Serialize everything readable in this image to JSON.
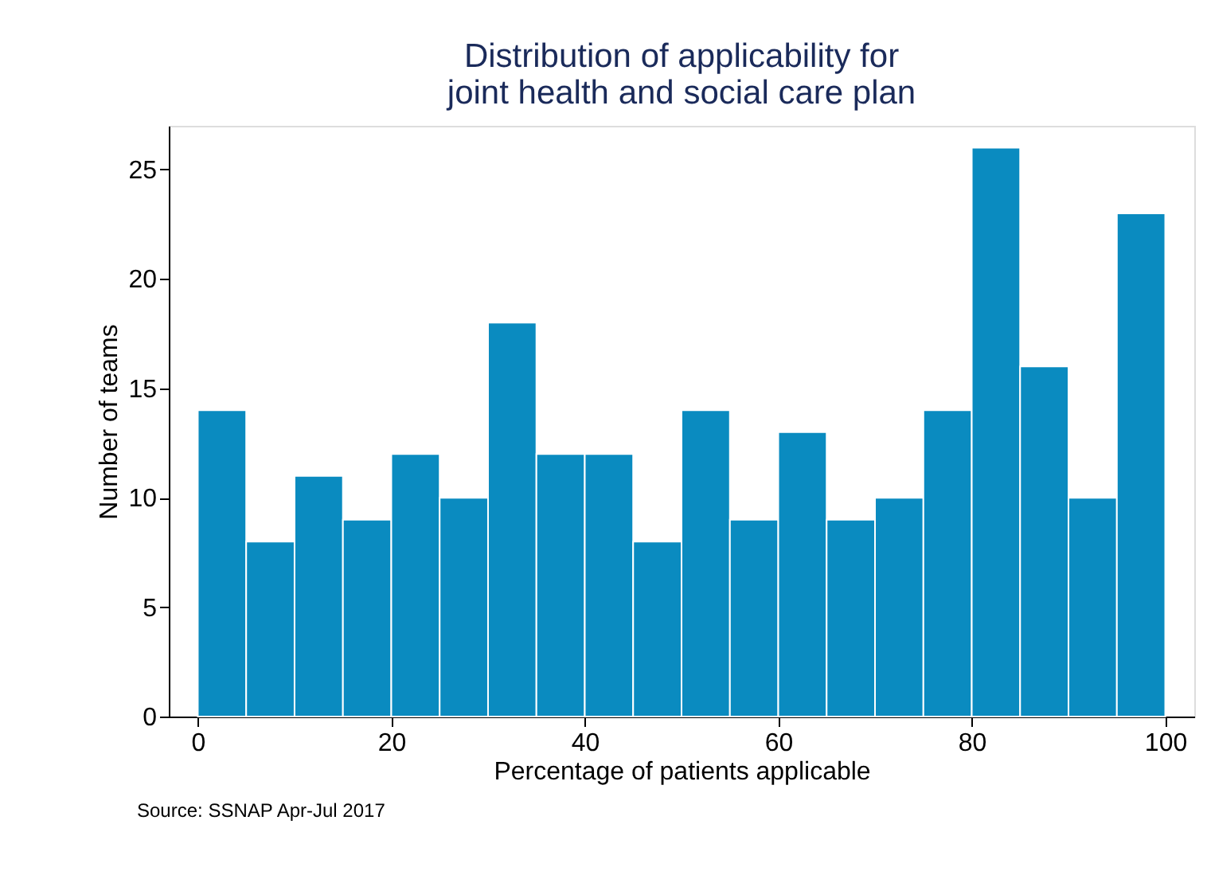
{
  "chart_data": {
    "type": "histogram",
    "title": "Distribution of applicability for\njoint health and social care plan",
    "xlabel": "Percentage of patients applicable",
    "ylabel": "Number of teams",
    "bins": [
      0,
      5,
      10,
      15,
      20,
      25,
      30,
      35,
      40,
      45,
      50,
      55,
      60,
      65,
      70,
      75,
      80,
      85,
      90,
      95,
      100
    ],
    "values": [
      14,
      8,
      11,
      9,
      12,
      10,
      18,
      12,
      12,
      8,
      14,
      9,
      13,
      9,
      10,
      14,
      26,
      16,
      10,
      23
    ],
    "color": "#0a8bc0",
    "xlim": [
      -3,
      103
    ],
    "xticks": [
      0,
      20,
      40,
      60,
      80,
      100
    ],
    "ylim": [
      0,
      27
    ],
    "yticks": [
      0,
      5,
      10,
      15,
      20,
      25
    ],
    "grid": false,
    "annotations": [
      "Source: SSNAP Apr-Jul 2017"
    ]
  }
}
